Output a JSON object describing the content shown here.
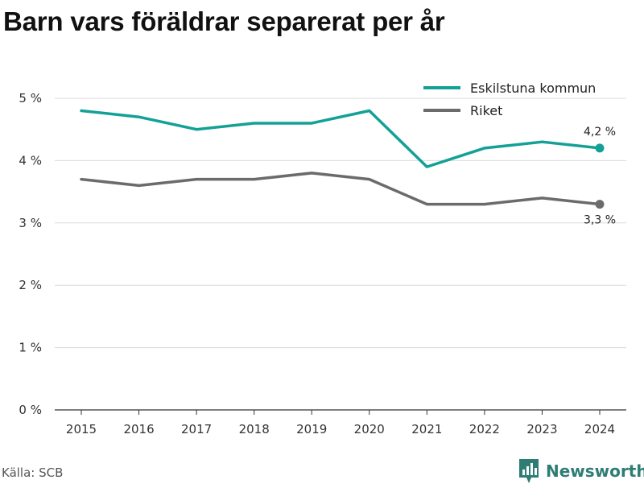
{
  "title": "Barn vars föräldrar separerat per år",
  "source": "Källa: SCB",
  "brand": {
    "name": "Newsworthy",
    "icon": "newsworthy-logo-icon",
    "color": "#2e7d75"
  },
  "chart_data": {
    "type": "line",
    "x": [
      "2015",
      "2016",
      "2017",
      "2018",
      "2019",
      "2020",
      "2021",
      "2022",
      "2023",
      "2024"
    ],
    "series": [
      {
        "name": "Eskilstuna kommun",
        "color": "#13a197",
        "values": [
          4.8,
          4.7,
          4.5,
          4.6,
          4.6,
          4.8,
          3.9,
          4.2,
          4.3,
          4.2
        ],
        "end_label": "4,2 %"
      },
      {
        "name": "Riket",
        "color": "#6b6b6e",
        "values": [
          3.7,
          3.6,
          3.7,
          3.7,
          3.8,
          3.7,
          3.3,
          3.3,
          3.4,
          3.3
        ],
        "end_label": "3,3 %"
      }
    ],
    "yticks": [
      0,
      1,
      2,
      3,
      4,
      5
    ],
    "ytick_labels": [
      "0 %",
      "1 %",
      "2 %",
      "3 %",
      "4 %",
      "5 %"
    ],
    "ylim": [
      0,
      5
    ],
    "xlabel": "",
    "ylabel": "",
    "grid": true,
    "legend_position": "top-right"
  }
}
